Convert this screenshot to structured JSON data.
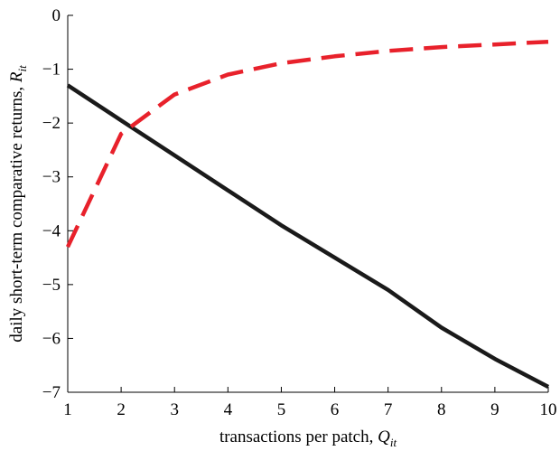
{
  "chart_data": {
    "type": "line",
    "xlabel": "transactions per patch, ",
    "xlabel_var": "Q",
    "xlabel_sub": "it",
    "ylabel": "daily short-term comparative returns, ",
    "ylabel_var": "R",
    "ylabel_sub": "it",
    "xlim": [
      1,
      10
    ],
    "ylim": [
      -7,
      0
    ],
    "xticks": [
      "1",
      "2",
      "3",
      "4",
      "5",
      "6",
      "7",
      "8",
      "9",
      "10"
    ],
    "yticks": [
      "0",
      "−1",
      "−2",
      "−3",
      "−4",
      "−5",
      "−6",
      "−7"
    ],
    "grid": false,
    "legend": "none",
    "x": [
      1,
      2,
      3,
      4,
      5,
      6,
      7,
      8,
      9,
      10
    ],
    "series": [
      {
        "values": [
          -1.3,
          -1.95,
          -2.6,
          -3.25,
          -3.9,
          -4.5,
          -5.1,
          -5.8,
          -6.38,
          -6.9
        ],
        "color": "#1a1a1a",
        "style": "solid"
      },
      {
        "values": [
          -4.3,
          -2.2,
          -1.47,
          -1.1,
          -0.89,
          -0.76,
          -0.66,
          -0.59,
          -0.54,
          -0.49
        ],
        "color": "#e8212b",
        "style": "dashed"
      }
    ]
  }
}
